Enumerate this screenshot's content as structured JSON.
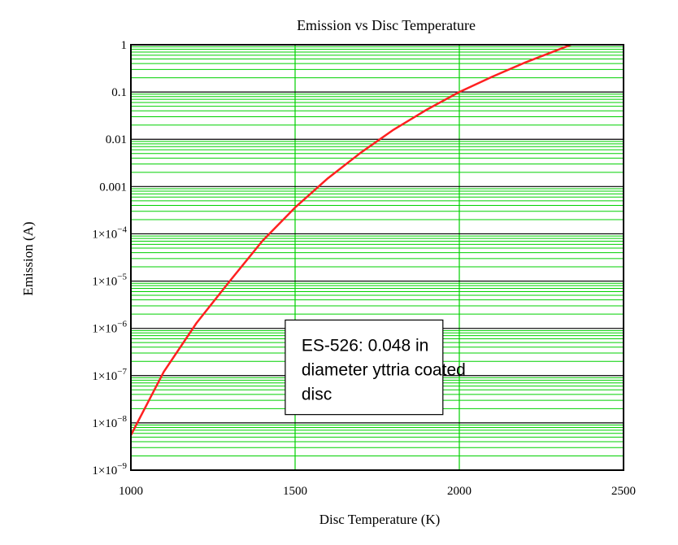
{
  "chart_data": {
    "type": "line",
    "title": "Emission vs Disc Temperature",
    "xlabel": "Disc Temperature (K)",
    "ylabel": "Emission (A)",
    "xlim": [
      1000,
      2500
    ],
    "ylim": [
      1e-09,
      1
    ],
    "yscale": "log",
    "grid": true,
    "x_ticks": [
      1000,
      1500,
      2000,
      2500
    ],
    "x_tick_labels": [
      "1000",
      "1500",
      "2000",
      "2500"
    ],
    "y_ticks": [
      {
        "value": 1,
        "text": "1",
        "base": "",
        "exp": ""
      },
      {
        "value": 0.1,
        "text": "0.1",
        "base": "",
        "exp": ""
      },
      {
        "value": 0.01,
        "text": "0.01",
        "base": "",
        "exp": ""
      },
      {
        "value": 0.001,
        "text": "0.001",
        "base": "",
        "exp": ""
      },
      {
        "value": 0.0001,
        "text": "",
        "base": "1×10",
        "exp": "−4"
      },
      {
        "value": 1e-05,
        "text": "",
        "base": "1×10",
        "exp": "−5"
      },
      {
        "value": 1e-06,
        "text": "",
        "base": "1×10",
        "exp": "−6"
      },
      {
        "value": 1e-07,
        "text": "",
        "base": "1×10",
        "exp": "−7"
      },
      {
        "value": 1e-08,
        "text": "",
        "base": "1×10",
        "exp": "−8"
      },
      {
        "value": 1e-09,
        "text": "",
        "base": "1×10",
        "exp": "−9"
      }
    ],
    "series": [
      {
        "color": "#ff2020",
        "x": [
          1000,
          1100,
          1200,
          1300,
          1400,
          1500,
          1600,
          1700,
          1800,
          1900,
          2000,
          2100,
          2200,
          2300,
          2340
        ],
        "y": [
          5.5e-09,
          1.2e-07,
          1.3e-06,
          9.8e-06,
          7e-05,
          0.00036,
          0.0015,
          0.0052,
          0.016,
          0.042,
          0.1,
          0.21,
          0.42,
          0.78,
          1.0
        ]
      }
    ],
    "annotation": {
      "lines": [
        "ES-526: 0.048 in",
        "diameter yttria coated",
        "disc"
      ],
      "x_range": [
        1470,
        1950
      ],
      "y_range": [
        1.5e-08,
        1.5e-06
      ]
    },
    "colors": {
      "major_grid": "#000000",
      "minor_grid": "#00d000",
      "curve": "#ff2020"
    }
  }
}
